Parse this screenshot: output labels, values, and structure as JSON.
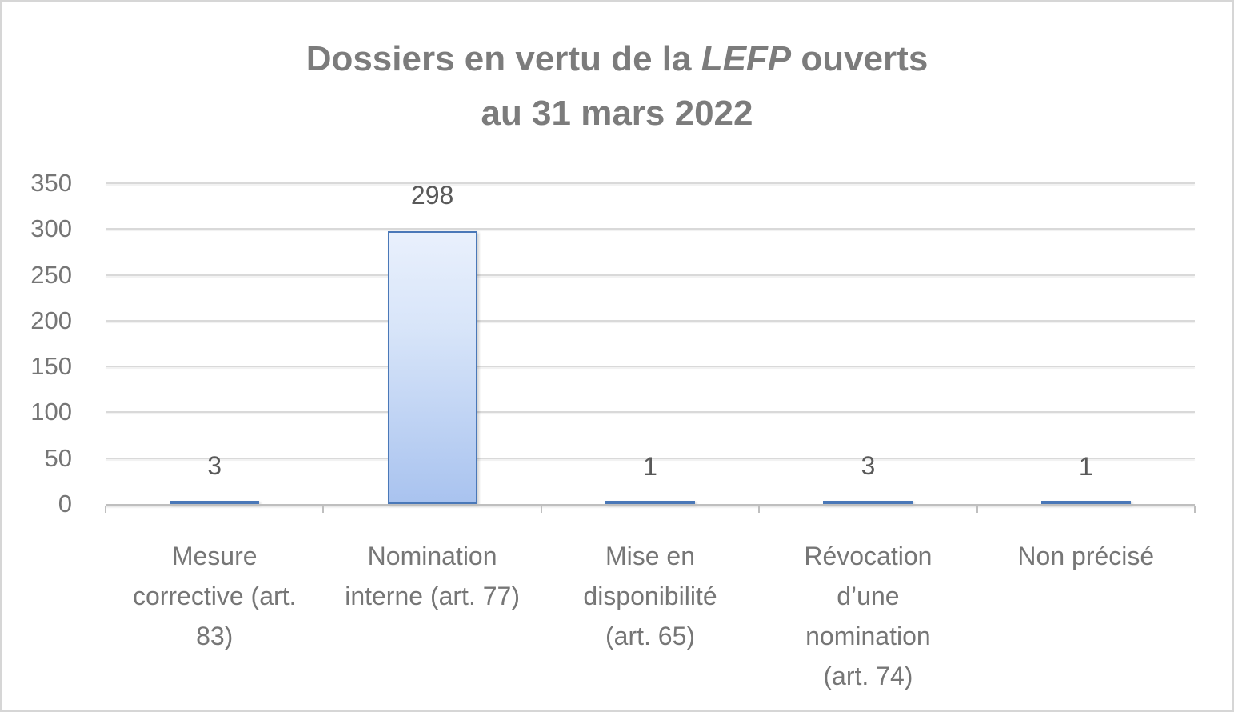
{
  "title": {
    "line1_prefix": "Dossiers en vertu de la ",
    "line1_italic": "LEFP",
    "line1_suffix": " ouverts",
    "line2": "au 31 mars 2022"
  },
  "chart_data": {
    "type": "bar",
    "title": "Dossiers en vertu de la LEFP ouverts au 31 mars 2022",
    "categories": [
      "Mesure corrective (art. 83)",
      "Nomination interne (art. 77)",
      "Mise en disponibilité (art. 65)",
      "Révocation d’une nomination (art. 74)",
      "Non précisé"
    ],
    "category_lines": [
      [
        "Mesure",
        "corrective (art.",
        "83)"
      ],
      [
        "Nomination",
        "interne (art. 77)"
      ],
      [
        "Mise en",
        "disponibilité",
        "(art. 65)"
      ],
      [
        "Révocation",
        "d’une",
        "nomination",
        "(art. 74)"
      ],
      [
        "Non précisé"
      ]
    ],
    "values": [
      3,
      298,
      1,
      3,
      1
    ],
    "data_labels": [
      "3",
      "298",
      "1",
      "3",
      "1"
    ],
    "xlabel": "",
    "ylabel": "",
    "ylim": [
      0,
      350
    ],
    "yticks": [
      0,
      50,
      100,
      150,
      200,
      250,
      300,
      350
    ],
    "grid": true,
    "legend": "none"
  },
  "colors": {
    "bar_fill_top": "#e9f0fc",
    "bar_fill_bottom": "#a9c3ef",
    "bar_border": "#4a78b8",
    "gridline": "#d9d9d9",
    "axis_line": "#bfbfbf",
    "title_text": "#7c7c7c",
    "axis_text": "#767676",
    "data_label_text": "#595959",
    "background": "#ffffff",
    "frame_border": "#d6d6d6"
  }
}
